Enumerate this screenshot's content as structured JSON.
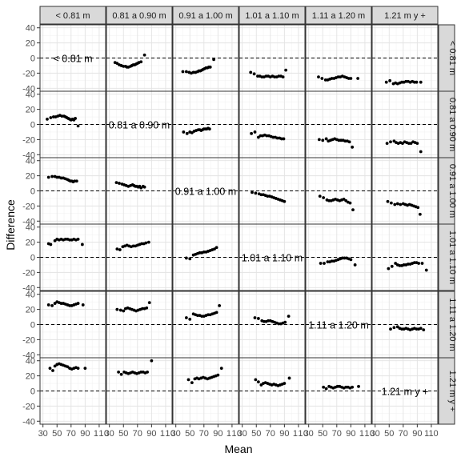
{
  "chart_data": {
    "type": "scatter",
    "title": "",
    "xlabel": "Mean",
    "ylabel": "Difference",
    "xlim": [
      30,
      115
    ],
    "ylim": [
      -40,
      40
    ],
    "x_ticks": [
      30,
      50,
      70,
      90,
      110
    ],
    "y_ticks": [
      -40,
      -20,
      0,
      20,
      40
    ],
    "x_tick_labels_grid": [
      [
        "30",
        "50",
        "70",
        "90",
        "1",
        "1",
        "0"
      ],
      [
        "30",
        "50",
        "70",
        "90",
        "1",
        "1",
        "0"
      ],
      [
        "30",
        "50",
        "70",
        "90",
        "1",
        "1",
        "0"
      ],
      [
        "30",
        "50",
        "70",
        "90",
        "1",
        "1",
        "0"
      ],
      [
        "30",
        "50",
        "70",
        "90",
        "1",
        "1",
        "0"
      ],
      [
        "30",
        "50",
        "70",
        "90",
        "110"
      ]
    ],
    "x_tick_labels": [
      "30",
      "50",
      "70",
      "90",
      "110"
    ],
    "y_tick_labels": [
      "-40",
      "-20",
      "0",
      "20",
      "40"
    ],
    "reference_line": 0,
    "grid": true,
    "groups": [
      "< 0.81 m",
      "0.81 a 0.90 m",
      "0.91 a 1.00 m",
      "1.01 a 1.10 m",
      "1.11 a 1.20 m",
      "1.21 m y +"
    ],
    "column_strips": [
      "< 0.81 m",
      "0.81 a 0.90 m",
      "0.91 a 1.00 m",
      "1.01 a 1.10 m",
      "1.11 a 1.20 m",
      "1.21 m y +"
    ],
    "row_strips": [
      "< 0.81 m",
      "0.81 a 0.90 m",
      "0.91 a 1.00 m",
      "1.01 a 1.10 m",
      "1.11 a 1.20 m",
      "1.21 m y +"
    ],
    "point_color": "#000000",
    "strip_fill": "#d9d9d9",
    "cells": [
      {
        "row": 0,
        "col": 1,
        "x": [
          38,
          41,
          44,
          47,
          50,
          53,
          55,
          57,
          60,
          62,
          64,
          66,
          68,
          70,
          72,
          75,
          80
        ],
        "y": [
          -6,
          -7,
          -9,
          -10,
          -11,
          -11,
          -12,
          -12,
          -11,
          -10,
          -9,
          -9,
          -8,
          -7,
          -6,
          -5,
          4
        ]
      },
      {
        "row": 0,
        "col": 2,
        "x": [
          40,
          45,
          49,
          52,
          55,
          58,
          61,
          63,
          65,
          67,
          69,
          71,
          73,
          75,
          77,
          79,
          84
        ],
        "y": [
          -18,
          -18,
          -19,
          -20,
          -19,
          -19,
          -18,
          -17,
          -17,
          -16,
          -15,
          -14,
          -13,
          -13,
          -12,
          -12,
          -2
        ]
      },
      {
        "row": 0,
        "col": 3,
        "x": [
          42,
          47,
          52,
          55,
          58,
          61,
          64,
          67,
          70,
          73,
          76,
          79,
          82,
          85,
          88,
          92
        ],
        "y": [
          -19,
          -21,
          -24,
          -24,
          -25,
          -25,
          -24,
          -24,
          -25,
          -24,
          -25,
          -25,
          -24,
          -24,
          -25,
          -16
        ]
      },
      {
        "row": 0,
        "col": 4,
        "x": [
          44,
          49,
          54,
          57,
          60,
          63,
          66,
          69,
          72,
          75,
          78,
          81,
          84,
          87,
          90,
          100
        ],
        "y": [
          -25,
          -27,
          -29,
          -29,
          -28,
          -27,
          -27,
          -26,
          -25,
          -25,
          -24,
          -25,
          -26,
          -27,
          -27,
          -27
        ]
      },
      {
        "row": 0,
        "col": 5,
        "x": [
          46,
          51,
          56,
          59,
          62,
          65,
          68,
          71,
          74,
          77,
          80,
          83,
          86,
          89,
          95
        ],
        "y": [
          -32,
          -30,
          -34,
          -33,
          -34,
          -33,
          -32,
          -32,
          -31,
          -31,
          -32,
          -31,
          -32,
          -32,
          -32
        ]
      },
      {
        "row": 1,
        "col": 0,
        "x": [
          36,
          41,
          45,
          48,
          51,
          54,
          57,
          60,
          62,
          64,
          66,
          68,
          70,
          72,
          74,
          76,
          80
        ],
        "y": [
          7,
          9,
          10,
          10,
          11,
          12,
          11,
          11,
          10,
          9,
          8,
          7,
          6,
          7,
          6,
          8,
          -2
        ]
      },
      {
        "row": 1,
        "col": 2,
        "x": [
          41,
          46,
          50,
          53,
          56,
          59,
          62,
          64,
          66,
          68,
          70,
          72,
          74,
          76,
          78
        ],
        "y": [
          -10,
          -12,
          -10,
          -11,
          -9,
          -8,
          -7,
          -7,
          -8,
          -7,
          -6,
          -6,
          -6,
          -5,
          -6
        ]
      },
      {
        "row": 1,
        "col": 3,
        "x": [
          43,
          48,
          53,
          56,
          59,
          62,
          65,
          68,
          71,
          74,
          77,
          80,
          83,
          86,
          89
        ],
        "y": [
          -12,
          -10,
          -17,
          -15,
          -15,
          -14,
          -15,
          -15,
          -16,
          -17,
          -17,
          -18,
          -18,
          -19,
          -19
        ]
      },
      {
        "row": 1,
        "col": 4,
        "x": [
          45,
          50,
          55,
          58,
          61,
          64,
          67,
          70,
          73,
          76,
          79,
          82,
          85,
          88,
          92
        ],
        "y": [
          -20,
          -21,
          -19,
          -22,
          -21,
          -20,
          -19,
          -20,
          -21,
          -21,
          -21,
          -22,
          -22,
          -23,
          -30
        ]
      },
      {
        "row": 1,
        "col": 5,
        "x": [
          47,
          52,
          57,
          60,
          63,
          66,
          69,
          72,
          75,
          78,
          81,
          84,
          87,
          90,
          95
        ],
        "y": [
          -25,
          -23,
          -22,
          -24,
          -25,
          -24,
          -25,
          -23,
          -24,
          -25,
          -25,
          -23,
          -24,
          -25,
          -36
        ]
      },
      {
        "row": 2,
        "col": 0,
        "x": [
          38,
          43,
          47,
          50,
          53,
          56,
          59,
          62,
          65,
          67,
          69,
          71,
          73,
          75,
          78
        ],
        "y": [
          18,
          19,
          19,
          18,
          18,
          17,
          17,
          16,
          15,
          14,
          13,
          13,
          12,
          13,
          13
        ]
      },
      {
        "row": 2,
        "col": 1,
        "x": [
          40,
          44,
          48,
          51,
          54,
          57,
          60,
          63,
          65,
          67,
          69,
          71,
          73,
          75,
          78,
          80
        ],
        "y": [
          11,
          10,
          9,
          8,
          7,
          6,
          7,
          8,
          7,
          6,
          6,
          5,
          6,
          4,
          6,
          5
        ]
      },
      {
        "row": 2,
        "col": 3,
        "x": [
          44,
          49,
          54,
          57,
          60,
          63,
          66,
          69,
          72,
          75,
          78,
          81,
          84,
          87,
          90
        ],
        "y": [
          -2,
          -3,
          -4,
          -5,
          -5,
          -6,
          -7,
          -7,
          -8,
          -9,
          -10,
          -11,
          -12,
          -13,
          -14
        ]
      },
      {
        "row": 2,
        "col": 4,
        "x": [
          46,
          51,
          56,
          59,
          62,
          65,
          68,
          71,
          74,
          77,
          80,
          83,
          86,
          89,
          93
        ],
        "y": [
          -7,
          -9,
          -12,
          -13,
          -13,
          -12,
          -11,
          -12,
          -13,
          -12,
          -11,
          -13,
          -15,
          -16,
          -25
        ]
      },
      {
        "row": 2,
        "col": 5,
        "x": [
          48,
          53,
          58,
          62,
          66,
          70,
          73,
          76,
          79,
          82,
          85,
          88,
          91,
          94
        ],
        "y": [
          -14,
          -16,
          -18,
          -17,
          -18,
          -17,
          -18,
          -19,
          -18,
          -19,
          -20,
          -21,
          -22,
          -31
        ]
      },
      {
        "row": 3,
        "col": 0,
        "x": [
          38,
          41,
          47,
          50,
          53,
          56,
          59,
          62,
          65,
          68,
          71,
          74,
          77,
          80,
          86
        ],
        "y": [
          18,
          17,
          22,
          24,
          23,
          24,
          23,
          24,
          24,
          23,
          23,
          24,
          23,
          24,
          17
        ]
      },
      {
        "row": 3,
        "col": 1,
        "x": [
          41,
          45,
          49,
          52,
          55,
          58,
          61,
          64,
          67,
          70,
          73,
          76,
          79,
          82,
          86
        ],
        "y": [
          11,
          10,
          14,
          15,
          16,
          15,
          14,
          15,
          15,
          16,
          17,
          18,
          18,
          19,
          20
        ]
      },
      {
        "row": 3,
        "col": 2,
        "x": [
          45,
          50,
          55,
          58,
          61,
          64,
          67,
          70,
          73,
          76,
          79,
          82,
          85,
          88
        ],
        "y": [
          -1,
          -2,
          3,
          4,
          5,
          6,
          6,
          7,
          7,
          8,
          9,
          10,
          11,
          13
        ]
      },
      {
        "row": 3,
        "col": 4,
        "x": [
          47,
          52,
          57,
          60,
          63,
          66,
          69,
          72,
          75,
          78,
          81,
          84,
          87,
          90,
          96
        ],
        "y": [
          -8,
          -8,
          -6,
          -6,
          -5,
          -5,
          -4,
          -3,
          -2,
          -1,
          -1,
          -1,
          -2,
          -3,
          -10
        ]
      },
      {
        "row": 3,
        "col": 5,
        "x": [
          49,
          54,
          59,
          62,
          65,
          68,
          71,
          74,
          77,
          80,
          83,
          86,
          89,
          92,
          97,
          103
        ],
        "y": [
          -15,
          -12,
          -8,
          -10,
          -11,
          -11,
          -10,
          -10,
          -9,
          -9,
          -8,
          -7,
          -7,
          -8,
          -8,
          -17
        ]
      },
      {
        "row": 4,
        "col": 0,
        "x": [
          38,
          43,
          47,
          50,
          53,
          56,
          59,
          62,
          65,
          68,
          71,
          74,
          77,
          80,
          87
        ],
        "y": [
          26,
          25,
          28,
          30,
          29,
          28,
          28,
          27,
          26,
          25,
          25,
          26,
          27,
          28,
          26
        ]
      },
      {
        "row": 4,
        "col": 1,
        "x": [
          41,
          46,
          50,
          53,
          56,
          59,
          62,
          65,
          68,
          71,
          74,
          77,
          80,
          83,
          87
        ],
        "y": [
          20,
          19,
          18,
          21,
          22,
          21,
          20,
          19,
          18,
          19,
          20,
          21,
          21,
          22,
          29
        ]
      },
      {
        "row": 4,
        "col": 2,
        "x": [
          45,
          50,
          55,
          58,
          61,
          64,
          67,
          70,
          73,
          76,
          79,
          82,
          85,
          88,
          92
        ],
        "y": [
          9,
          7,
          14,
          13,
          12,
          12,
          11,
          11,
          12,
          13,
          13,
          14,
          15,
          16,
          25
        ]
      },
      {
        "row": 4,
        "col": 3,
        "x": [
          48,
          53,
          58,
          61,
          64,
          67,
          70,
          73,
          76,
          79,
          82,
          85,
          88,
          91,
          96
        ],
        "y": [
          9,
          8,
          5,
          4,
          4,
          5,
          5,
          4,
          3,
          2,
          1,
          1,
          2,
          3,
          11
        ]
      },
      {
        "row": 4,
        "col": 5,
        "x": [
          52,
          57,
          62,
          65,
          68,
          71,
          74,
          77,
          80,
          83,
          86,
          89,
          92,
          95,
          99
        ],
        "y": [
          -6,
          -4,
          -3,
          -5,
          -6,
          -6,
          -5,
          -6,
          -7,
          -6,
          -5,
          -6,
          -6,
          -5,
          -7
        ]
      },
      {
        "row": 5,
        "col": 0,
        "x": [
          40,
          44,
          47,
          50,
          53,
          56,
          59,
          62,
          65,
          68,
          71,
          74,
          77,
          80,
          90
        ],
        "y": [
          30,
          27,
          33,
          35,
          36,
          35,
          34,
          33,
          32,
          30,
          29,
          30,
          31,
          30,
          30
        ]
      },
      {
        "row": 5,
        "col": 1,
        "x": [
          43,
          47,
          51,
          54,
          57,
          60,
          63,
          66,
          69,
          72,
          75,
          78,
          81,
          84,
          90
        ],
        "y": [
          25,
          22,
          25,
          24,
          23,
          24,
          25,
          24,
          23,
          24,
          25,
          25,
          24,
          25,
          40
        ]
      },
      {
        "row": 5,
        "col": 2,
        "x": [
          48,
          53,
          57,
          60,
          63,
          66,
          69,
          72,
          75,
          78,
          81,
          84,
          87,
          90,
          95
        ],
        "y": [
          15,
          11,
          16,
          17,
          16,
          17,
          18,
          17,
          16,
          17,
          18,
          19,
          20,
          21,
          30
        ]
      },
      {
        "row": 5,
        "col": 3,
        "x": [
          49,
          53,
          57,
          60,
          63,
          66,
          69,
          72,
          75,
          78,
          81,
          84,
          87,
          90,
          97
        ],
        "y": [
          15,
          12,
          8,
          10,
          11,
          10,
          9,
          8,
          9,
          8,
          7,
          8,
          9,
          10,
          17
        ]
      },
      {
        "row": 5,
        "col": 4,
        "x": [
          51,
          55,
          59,
          62,
          65,
          68,
          71,
          74,
          77,
          80,
          83,
          86,
          89,
          92,
          101
        ],
        "y": [
          5,
          3,
          6,
          5,
          4,
          5,
          6,
          6,
          5,
          4,
          5,
          5,
          4,
          5,
          6
        ]
      }
    ]
  }
}
